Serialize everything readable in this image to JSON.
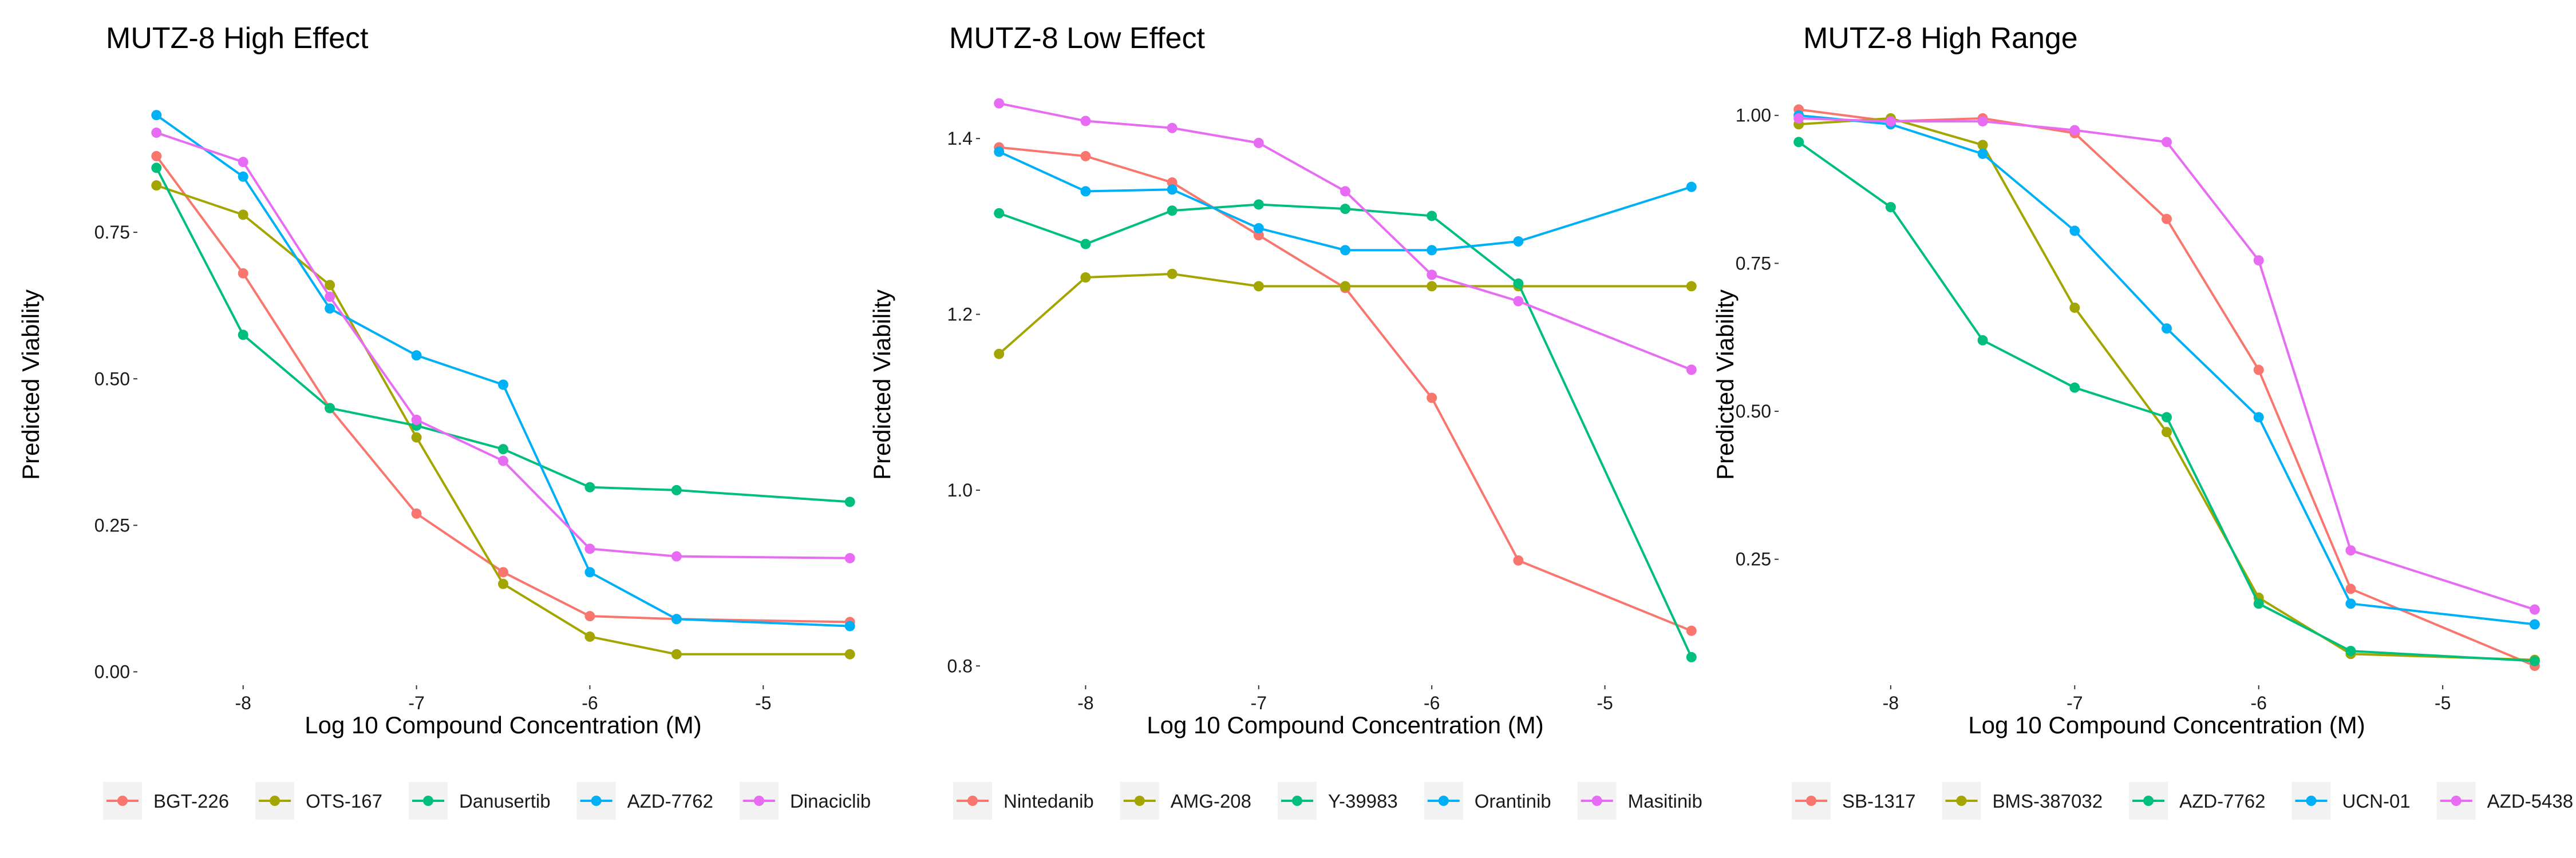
{
  "chart_data": [
    {
      "type": "line",
      "title": "MUTZ-8 High Effect",
      "xlabel": "Log 10 Compound Concentration (M)",
      "ylabel": "Predicted Viability",
      "x": [
        -8.5,
        -8.0,
        -7.5,
        -7.0,
        -6.5,
        -6.0,
        -5.5,
        -4.5
      ],
      "xlim": [
        -8.6,
        -4.4
      ],
      "ylim": [
        -0.02,
        1.0
      ],
      "xticks": [
        -8,
        -7,
        -6,
        -5
      ],
      "xtick_labels": [
        "-8",
        "-7",
        "-6",
        "-5"
      ],
      "yticks": [
        0.0,
        0.25,
        0.5,
        0.75
      ],
      "ytick_labels": [
        "0.00",
        "0.25",
        "0.50",
        "0.75"
      ],
      "grid": false,
      "legend_position": "bottom",
      "series": [
        {
          "name": "BGT-226",
          "color": "#F8766D",
          "values": [
            0.88,
            0.68,
            0.45,
            0.27,
            0.17,
            0.095,
            0.09,
            0.085
          ]
        },
        {
          "name": "OTS-167",
          "color": "#A3A500",
          "values": [
            0.83,
            0.78,
            0.66,
            0.4,
            0.15,
            0.06,
            0.03,
            0.03
          ]
        },
        {
          "name": "Danusertib",
          "color": "#00BF7D",
          "values": [
            0.86,
            0.575,
            0.45,
            0.42,
            0.38,
            0.315,
            0.31,
            0.29
          ]
        },
        {
          "name": "AZD-7762",
          "color": "#00B0F6",
          "values": [
            0.95,
            0.845,
            0.62,
            0.54,
            0.49,
            0.17,
            0.09,
            0.078
          ]
        },
        {
          "name": "Dinaciclib",
          "color": "#E76BF3",
          "values": [
            0.92,
            0.87,
            0.64,
            0.43,
            0.36,
            0.21,
            0.197,
            0.194
          ]
        }
      ]
    },
    {
      "type": "line",
      "title": "MUTZ-8 Low Effect",
      "xlabel": "Log 10 Compound Concentration (M)",
      "ylabel": "Predicted Viability",
      "x": [
        -8.5,
        -8.0,
        -7.5,
        -7.0,
        -6.5,
        -6.0,
        -5.5,
        -4.5
      ],
      "xlim": [
        -8.6,
        -4.4
      ],
      "ylim": [
        0.78,
        1.46
      ],
      "xticks": [
        -8,
        -7,
        -6,
        -5
      ],
      "xtick_labels": [
        "-8",
        "-7",
        "-6",
        "-5"
      ],
      "yticks": [
        0.8,
        1.0,
        1.2,
        1.4
      ],
      "ytick_labels": [
        "0.8",
        "1.0",
        "1.2",
        "1.4"
      ],
      "grid": false,
      "legend_position": "bottom",
      "series": [
        {
          "name": "Nintedanib",
          "color": "#F8766D",
          "values": [
            1.39,
            1.38,
            1.35,
            1.29,
            1.23,
            1.105,
            0.92,
            0.84
          ]
        },
        {
          "name": "AMG-208",
          "color": "#A3A500",
          "values": [
            1.155,
            1.242,
            1.246,
            1.232,
            1.232,
            1.232,
            1.232,
            1.232
          ]
        },
        {
          "name": "Y-39983",
          "color": "#00BF7D",
          "values": [
            1.315,
            1.28,
            1.318,
            1.325,
            1.32,
            1.312,
            1.235,
            0.81
          ]
        },
        {
          "name": "Orantinib",
          "color": "#00B0F6",
          "values": [
            1.385,
            1.34,
            1.342,
            1.298,
            1.273,
            1.273,
            1.283,
            1.345
          ]
        },
        {
          "name": "Masitinib",
          "color": "#E76BF3",
          "values": [
            1.44,
            1.42,
            1.412,
            1.395,
            1.34,
            1.245,
            1.215,
            1.137
          ]
        }
      ]
    },
    {
      "type": "line",
      "title": "MUTZ-8 High Range",
      "xlabel": "Log 10 Compound Concentration (M)",
      "ylabel": "Predicted Viability",
      "x": [
        -8.5,
        -8.0,
        -7.5,
        -7.0,
        -6.5,
        -6.0,
        -5.5,
        -4.5
      ],
      "xlim": [
        -8.6,
        -4.4
      ],
      "ylim": [
        0.04,
        1.05
      ],
      "xticks": [
        -8,
        -7,
        -6,
        -5
      ],
      "xtick_labels": [
        "-8",
        "-7",
        "-6",
        "-5"
      ],
      "yticks": [
        0.25,
        0.5,
        0.75,
        1.0
      ],
      "ytick_labels": [
        "0.25",
        "0.50",
        "0.75",
        "1.00"
      ],
      "grid": false,
      "legend_position": "bottom",
      "series": [
        {
          "name": "SB-1317",
          "color": "#F8766D",
          "values": [
            1.01,
            0.99,
            0.995,
            0.97,
            0.825,
            0.57,
            0.2,
            0.07
          ]
        },
        {
          "name": "BMS-387032",
          "color": "#A3A500",
          "values": [
            0.985,
            0.995,
            0.95,
            0.675,
            0.465,
            0.185,
            0.09,
            0.08
          ]
        },
        {
          "name": "AZD-7762",
          "color": "#00BF7D",
          "values": [
            0.955,
            0.845,
            0.62,
            0.54,
            0.49,
            0.175,
            0.095,
            0.078
          ]
        },
        {
          "name": "UCN-01",
          "color": "#00B0F6",
          "values": [
            1.0,
            0.985,
            0.935,
            0.805,
            0.64,
            0.49,
            0.175,
            0.14
          ]
        },
        {
          "name": "AZD-5438",
          "color": "#E76BF3",
          "values": [
            0.995,
            0.99,
            0.99,
            0.975,
            0.955,
            0.755,
            0.265,
            0.165
          ]
        }
      ]
    }
  ]
}
